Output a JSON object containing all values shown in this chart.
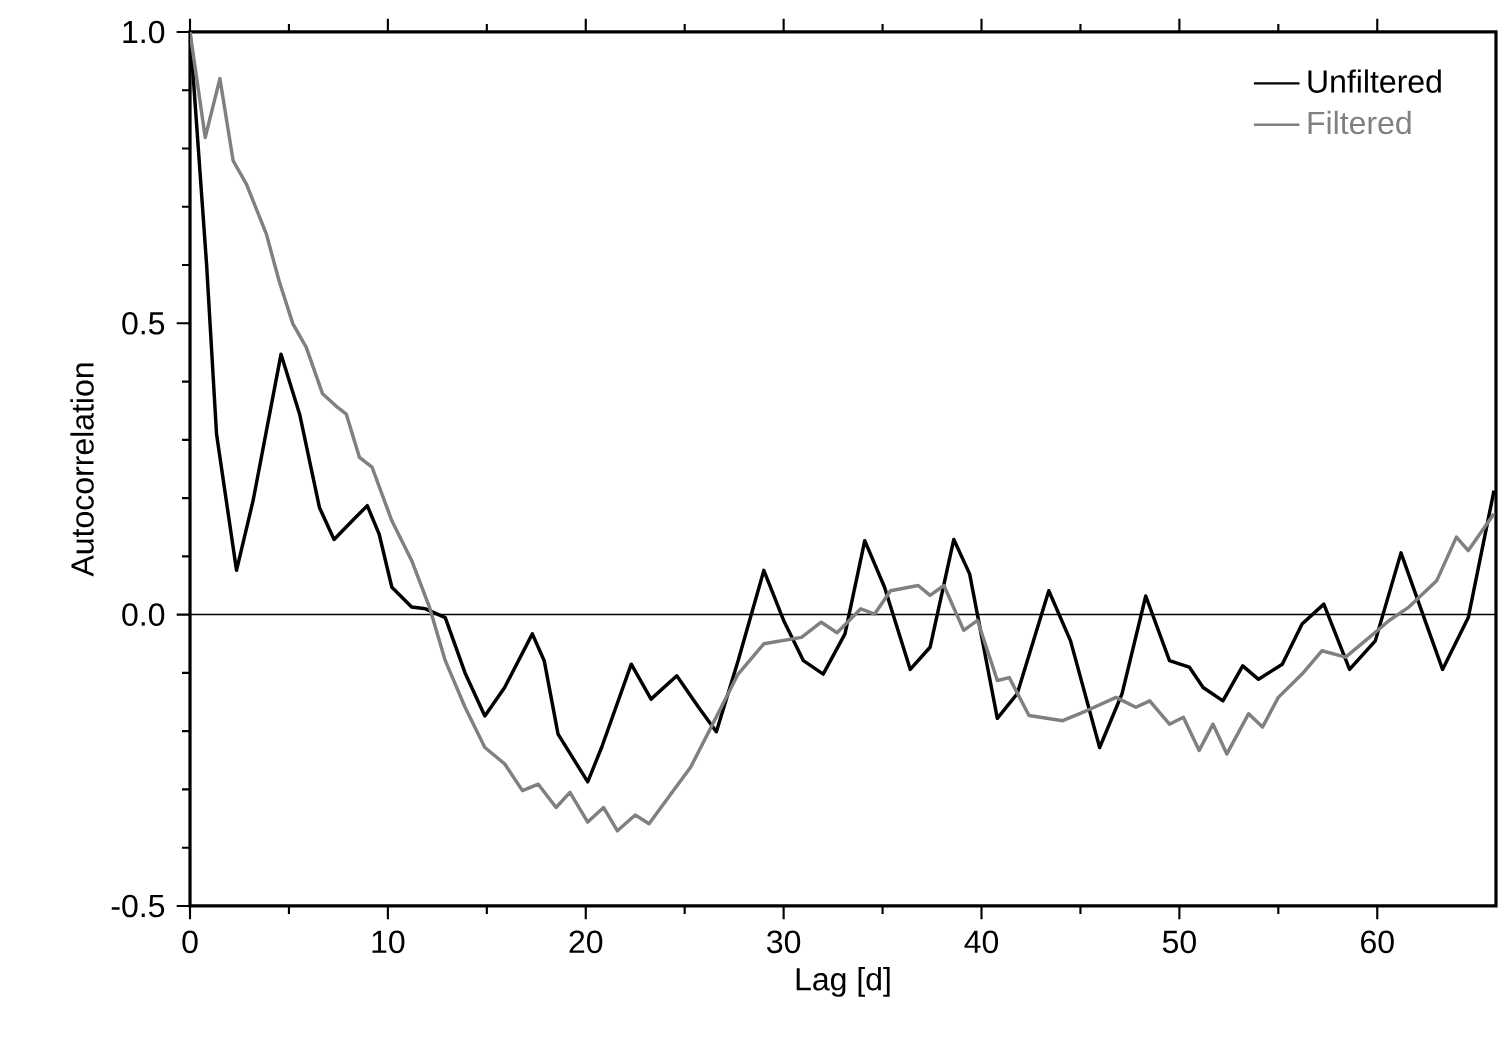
{
  "chart_data": {
    "type": "line",
    "xlabel": "Lag [d]",
    "ylabel": "Autocorrelation",
    "xlim": [
      0,
      66
    ],
    "ylim": [
      -0.5,
      1.0
    ],
    "xticks": [
      0,
      10,
      20,
      30,
      40,
      50,
      60
    ],
    "yticks": [
      {
        "value": -0.5,
        "label": "-0.5"
      },
      {
        "value": 0,
        "label": "0.0"
      },
      {
        "value": 0.5,
        "label": "0.5"
      },
      {
        "value": 1.0,
        "label": "1.0"
      }
    ],
    "grid": false,
    "legend": "top right",
    "line_style": "solid",
    "marker": "none",
    "ref_lines": [
      {
        "axis": "y",
        "value": 0,
        "color": "#000000"
      }
    ],
    "series": [
      {
        "name": "Unfiltered",
        "color": "#000000",
        "x": [
          0,
          0.84,
          1.34,
          2.35,
          3.19,
          4.6,
          5.54,
          6.54,
          7.28,
          8.2,
          8.96,
          9.56,
          10.2,
          11.2,
          11.9,
          12.9,
          13.9,
          14.9,
          15.9,
          17.3,
          17.9,
          18.6,
          20.1,
          20.8,
          22.3,
          23.3,
          24.6,
          25.7,
          26.6,
          27.7,
          29.0,
          30.0,
          31.0,
          32.0,
          33.1,
          34.1,
          35.1,
          36.4,
          37.4,
          38.6,
          39.4,
          40.8,
          41.8,
          43.4,
          44.5,
          45.97,
          47.1,
          48.3,
          49.5,
          50.5,
          51.2,
          52.2,
          53.2,
          54.0,
          55.2,
          56.2,
          57.3,
          58.6,
          59.9,
          61.2,
          62.3,
          63.3,
          64.6,
          65.9
        ],
        "values": [
          1.0,
          0.6,
          0.31,
          0.076,
          0.196,
          0.447,
          0.344,
          0.184,
          0.129,
          0.161,
          0.187,
          0.138,
          0.047,
          0.013,
          0.01,
          -0.005,
          -0.1,
          -0.174,
          -0.125,
          -0.033,
          -0.079,
          -0.205,
          -0.287,
          -0.228,
          -0.085,
          -0.145,
          -0.105,
          -0.159,
          -0.201,
          -0.079,
          0.076,
          -0.01,
          -0.079,
          -0.102,
          -0.033,
          0.127,
          0.047,
          -0.094,
          -0.056,
          0.129,
          0.07,
          -0.178,
          -0.136,
          0.041,
          -0.045,
          -0.228,
          -0.136,
          0.032,
          -0.079,
          -0.09,
          -0.125,
          -0.148,
          -0.088,
          -0.111,
          -0.085,
          -0.016,
          0.018,
          -0.094,
          -0.045,
          0.106,
          0.001,
          -0.094,
          -0.005,
          0.213
        ]
      },
      {
        "name": "Filtered",
        "color": "#808080",
        "x": [
          0,
          0.77,
          1.51,
          2.18,
          2.85,
          3.86,
          4.5,
          5.2,
          5.87,
          6.7,
          7.38,
          7.9,
          8.56,
          9.2,
          10.2,
          11.2,
          12.1,
          12.9,
          13.9,
          14.9,
          15.9,
          16.8,
          17.6,
          18.5,
          19.2,
          20.1,
          20.9,
          21.6,
          22.5,
          23.2,
          24.3,
          25.3,
          26.5,
          27.7,
          29.0,
          30.9,
          31.9,
          32.7,
          33.9,
          34.6,
          35.4,
          36.8,
          37.4,
          38.1,
          39.1,
          39.8,
          40.8,
          41.4,
          42.4,
          44.1,
          45.3,
          46.8,
          47.8,
          48.5,
          49.5,
          50.2,
          51.0,
          51.7,
          52.4,
          53.5,
          54.2,
          55.0,
          56.2,
          57.2,
          58.4,
          59.6,
          60.6,
          61.6,
          63.0,
          64.0,
          64.6,
          65.9
        ],
        "values": [
          1.0,
          0.819,
          0.92,
          0.779,
          0.739,
          0.653,
          0.573,
          0.499,
          0.459,
          0.379,
          0.358,
          0.344,
          0.27,
          0.253,
          0.161,
          0.093,
          0.013,
          -0.079,
          -0.159,
          -0.228,
          -0.256,
          -0.302,
          -0.291,
          -0.331,
          -0.305,
          -0.356,
          -0.331,
          -0.371,
          -0.344,
          -0.359,
          -0.308,
          -0.262,
          -0.182,
          -0.102,
          -0.05,
          -0.039,
          -0.013,
          -0.031,
          0.01,
          0.001,
          0.041,
          0.05,
          0.033,
          0.05,
          -0.027,
          -0.01,
          -0.113,
          -0.108,
          -0.173,
          -0.182,
          -0.165,
          -0.142,
          -0.159,
          -0.148,
          -0.188,
          -0.176,
          -0.233,
          -0.188,
          -0.239,
          -0.17,
          -0.193,
          -0.142,
          -0.102,
          -0.062,
          -0.073,
          -0.039,
          -0.01,
          0.013,
          0.058,
          0.133,
          0.11,
          0.173
        ]
      }
    ]
  }
}
